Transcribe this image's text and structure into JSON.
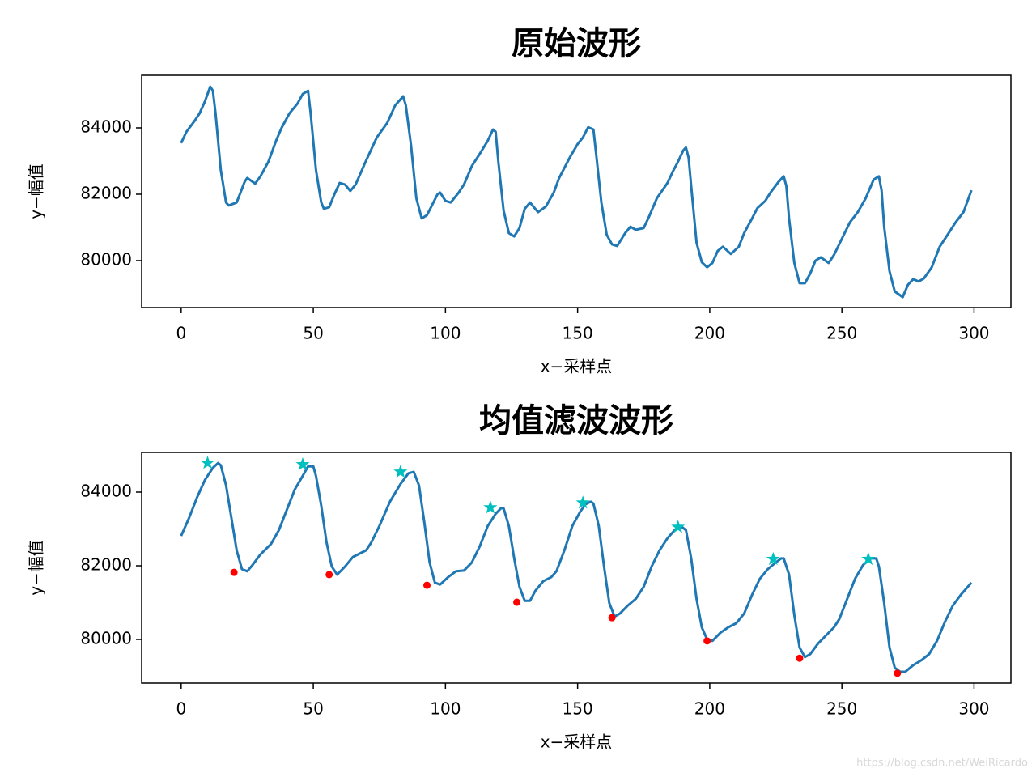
{
  "chart_data": [
    {
      "type": "line",
      "title": "原始波形",
      "xlabel": "x−采样点",
      "ylabel": "y−幅值",
      "xlim": [
        -14.95,
        313.95
      ],
      "ylim": [
        78585,
        85585
      ],
      "xticks": [
        0,
        50,
        100,
        150,
        200,
        250,
        300
      ],
      "yticks": [
        80000,
        82000,
        84000
      ],
      "series": [
        {
          "color": "#1f77b4",
          "x": [
            0,
            2,
            5,
            7,
            9,
            11,
            12,
            13,
            15,
            17,
            18,
            21,
            24,
            25,
            28,
            30,
            33,
            36,
            38,
            41,
            44,
            46,
            48,
            49,
            51,
            53,
            54,
            56,
            58,
            60,
            62,
            64,
            66,
            70,
            74,
            78,
            81,
            84,
            85,
            87,
            89,
            91,
            93,
            95,
            97,
            98,
            100,
            102,
            105,
            107,
            110,
            113,
            116,
            118,
            119,
            120,
            122,
            124,
            126,
            128,
            130,
            132,
            135,
            138,
            141,
            143,
            147,
            150,
            152,
            154,
            156,
            157,
            159,
            161,
            163,
            165,
            168,
            170,
            172,
            175,
            177,
            180,
            184,
            186,
            188,
            190,
            191,
            192,
            193,
            195,
            197,
            199,
            201,
            203,
            205,
            208,
            211,
            213,
            216,
            218,
            221,
            223,
            226,
            228,
            229,
            230,
            232,
            234,
            236,
            238,
            240,
            242,
            245,
            247,
            250,
            253,
            256,
            259,
            262,
            264,
            265,
            266,
            268,
            270,
            273,
            275,
            277,
            279,
            281,
            284,
            287,
            290,
            293,
            296,
            299
          ],
          "values": [
            83540,
            83880,
            84200,
            84440,
            84800,
            85240,
            85120,
            84440,
            82730,
            81750,
            81660,
            81750,
            82370,
            82490,
            82320,
            82540,
            82980,
            83630,
            84000,
            84440,
            84730,
            85020,
            85120,
            84440,
            82730,
            81750,
            81560,
            81610,
            82000,
            82340,
            82290,
            82100,
            82290,
            83020,
            83710,
            84150,
            84680,
            84950,
            84680,
            83460,
            81880,
            81270,
            81370,
            81680,
            82000,
            82050,
            81800,
            81750,
            82050,
            82290,
            82850,
            83220,
            83610,
            83950,
            83880,
            82980,
            81510,
            80830,
            80730,
            80980,
            81560,
            81750,
            81460,
            81630,
            82050,
            82490,
            83100,
            83510,
            83710,
            84020,
            83950,
            83220,
            81750,
            80780,
            80490,
            80440,
            80830,
            81020,
            80930,
            80980,
            81320,
            81880,
            82340,
            82680,
            82980,
            83320,
            83410,
            83100,
            82240,
            80540,
            79950,
            79800,
            79930,
            80290,
            80420,
            80200,
            80420,
            80830,
            81270,
            81580,
            81800,
            82050,
            82370,
            82540,
            82240,
            81270,
            79930,
            79320,
            79320,
            79610,
            80000,
            80100,
            79930,
            80170,
            80660,
            81150,
            81460,
            81880,
            82440,
            82540,
            82120,
            81020,
            79680,
            79070,
            78900,
            79270,
            79440,
            79370,
            79460,
            79800,
            80420,
            80780,
            81150,
            81460,
            82120
          ]
        }
      ]
    },
    {
      "type": "line",
      "title": "均值滤波波形",
      "xlabel": "x−采样点",
      "ylabel": "y−幅值",
      "xlim": [
        -14.95,
        313.95
      ],
      "ylim": [
        78813,
        85077
      ],
      "xticks": [
        0,
        50,
        100,
        150,
        200,
        250,
        300
      ],
      "yticks": [
        80000,
        82000,
        84000
      ],
      "watermark": "https://blog.csdn.net/WeiRicardo",
      "series": [
        {
          "type": "line",
          "color": "#1f77b4",
          "x": [
            0,
            3,
            6,
            9,
            12,
            14,
            15,
            17,
            19,
            21,
            23,
            25,
            27,
            30,
            34,
            37,
            40,
            43,
            46,
            48,
            50,
            51,
            53,
            55,
            57,
            59,
            62,
            65,
            70,
            72,
            75,
            79,
            83,
            86,
            88,
            90,
            92,
            94,
            96,
            98,
            101,
            104,
            107,
            110,
            113,
            116,
            119,
            121,
            122,
            124,
            126,
            128,
            130,
            132,
            134,
            137,
            140,
            142,
            145,
            148,
            151,
            153,
            155,
            156,
            158,
            160,
            162,
            164,
            166,
            169,
            172,
            175,
            178,
            181,
            184,
            187,
            189,
            191,
            193,
            195,
            197,
            199,
            201,
            204,
            207,
            210,
            213,
            216,
            219,
            222,
            225,
            227,
            228,
            230,
            232,
            234,
            236,
            238,
            241,
            244,
            247,
            249,
            252,
            255,
            258,
            261,
            263,
            264,
            266,
            268,
            270,
            272,
            274,
            277,
            280,
            283,
            286,
            289,
            292,
            295,
            299
          ],
          "values": [
            82810,
            83300,
            83850,
            84330,
            84660,
            84790,
            84730,
            84180,
            83300,
            82420,
            81910,
            81850,
            82020,
            82310,
            82590,
            82970,
            83520,
            84070,
            84440,
            84700,
            84700,
            84440,
            83630,
            82640,
            81980,
            81760,
            81980,
            82240,
            82420,
            82640,
            83080,
            83740,
            84220,
            84510,
            84550,
            84180,
            83190,
            82090,
            81540,
            81490,
            81690,
            81850,
            81870,
            82090,
            82530,
            83080,
            83410,
            83560,
            83560,
            83080,
            82200,
            81430,
            81050,
            81050,
            81320,
            81580,
            81690,
            81850,
            82420,
            83080,
            83470,
            83670,
            83740,
            83690,
            83080,
            81980,
            80990,
            80620,
            80700,
            80920,
            81100,
            81430,
            81980,
            82420,
            82750,
            82990,
            83080,
            82970,
            82200,
            81100,
            80330,
            80000,
            79960,
            80180,
            80330,
            80440,
            80700,
            81210,
            81650,
            81910,
            82090,
            82200,
            82200,
            81760,
            80660,
            79780,
            79520,
            79600,
            79890,
            80110,
            80330,
            80550,
            81100,
            81650,
            82020,
            82200,
            82200,
            81980,
            80990,
            79780,
            79230,
            79120,
            79120,
            79300,
            79430,
            79600,
            79960,
            80480,
            80920,
            81210,
            81540
          ]
        },
        {
          "type": "scatter",
          "marker": "star",
          "color": "#00bfbf",
          "x": [
            10,
            46,
            83,
            117,
            152,
            188,
            224,
            260
          ],
          "values": [
            84790,
            84750,
            84550,
            83580,
            83710,
            83050,
            82180,
            82180
          ]
        },
        {
          "type": "scatter",
          "marker": "dot",
          "color": "#ff0000",
          "x": [
            20,
            56,
            93,
            127,
            163,
            199,
            234,
            271
          ],
          "values": [
            81820,
            81760,
            81470,
            81010,
            80590,
            79960,
            79490,
            79080
          ]
        }
      ]
    }
  ]
}
